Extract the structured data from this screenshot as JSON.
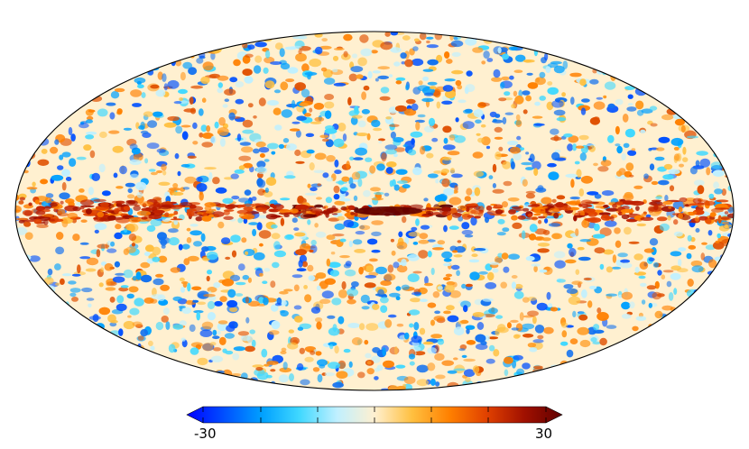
{
  "colorbar": {
    "min_label": "-30",
    "max_label": "30",
    "min_value": -30,
    "max_value": 30,
    "colors": [
      "#0000ff",
      "#0050ff",
      "#00a0ff",
      "#40d8ff",
      "#c0f0ff",
      "#fff0d0",
      "#ffc040",
      "#ff8000",
      "#e04000",
      "#a01000",
      "#600000"
    ]
  },
  "map": {
    "projection": "mollweide",
    "outline_color": "#000000"
  }
}
